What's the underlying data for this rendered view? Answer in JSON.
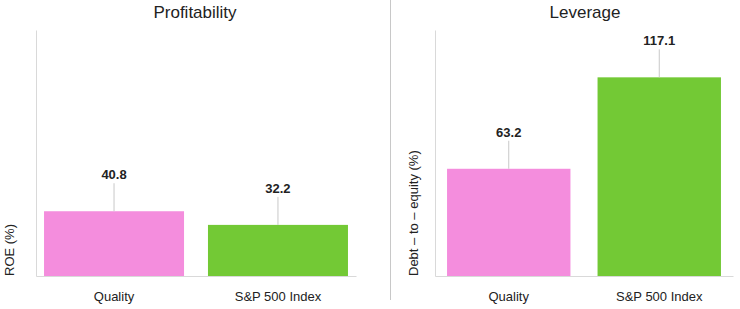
{
  "chart_data": [
    {
      "type": "bar",
      "title": "Profitability",
      "y_label": "ROE (%)",
      "categories": [
        "Quality",
        "S&P 500 Index"
      ],
      "values": [
        40.8,
        32.2
      ],
      "colors": [
        "#f48ddd",
        "#73c935"
      ],
      "ylim": [
        0,
        155
      ],
      "data_labels": true,
      "tick_labels": "x"
    },
    {
      "type": "bar",
      "title": "Leverage",
      "y_label": "Debt – to – equity (%)",
      "categories": [
        "Quality",
        "S&P 500 Index"
      ],
      "values": [
        63.2,
        117.1
      ],
      "colors": [
        "#f48ddd",
        "#73c935"
      ],
      "ylim": [
        0,
        145
      ],
      "data_labels": true,
      "tick_labels": "x"
    }
  ]
}
